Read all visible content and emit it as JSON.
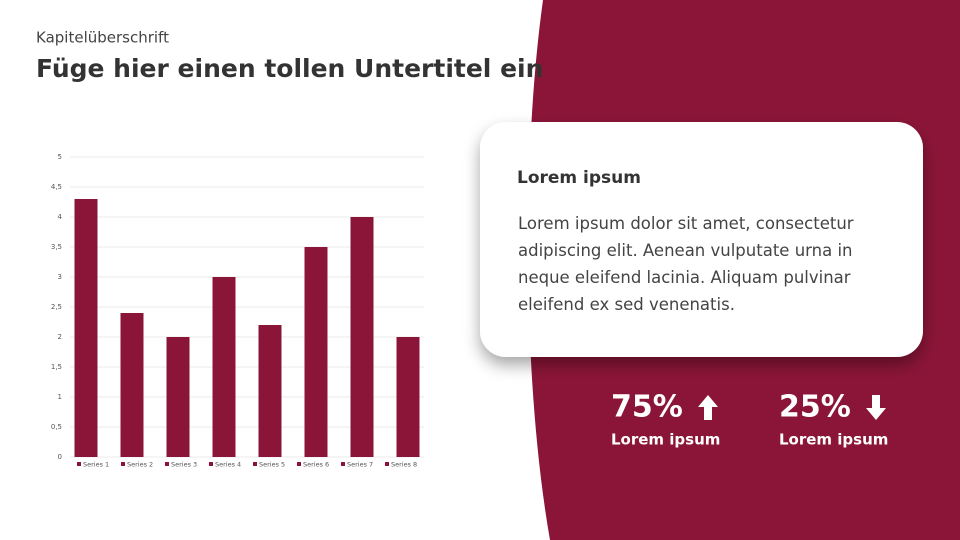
{
  "header": {
    "kicker": "Kapitelüberschrift",
    "title": "Füge hier einen tollen Untertitel ein"
  },
  "chart_data": {
    "type": "bar",
    "categories": [
      null
    ],
    "series": [
      {
        "name": "Series 1",
        "color": "#8b1538",
        "values": [
          4.3
        ]
      },
      {
        "name": "Series 2",
        "color": "#8b1538",
        "values": [
          2.4
        ]
      },
      {
        "name": "Series 3",
        "color": "#8b1538",
        "values": [
          2
        ]
      },
      {
        "name": "Series 4",
        "color": "#8b1538",
        "values": [
          3
        ]
      },
      {
        "name": "Series 5",
        "color": "#8b1538",
        "values": [
          2.2
        ]
      },
      {
        "name": "Series 6",
        "color": "#8b1538",
        "values": [
          3.5
        ]
      },
      {
        "name": "Series 7",
        "color": "#8b1538",
        "values": [
          4
        ]
      },
      {
        "name": "Series 8",
        "color": "#8b1538",
        "values": [
          2
        ]
      }
    ],
    "ylim": [
      0,
      5
    ],
    "yticks": [
      0,
      {
        "value": 0.5,
        "label": "0,5"
      },
      1,
      {
        "value": 1.5,
        "label": "1,5"
      },
      2,
      {
        "value": 2.5,
        "label": "2,5"
      },
      3,
      {
        "value": 3.5,
        "label": "3,5"
      },
      4,
      {
        "value": 4.5,
        "label": "4,5"
      },
      5
    ],
    "grid": true,
    "legend": "bottom"
  },
  "card": {
    "title": "Lorem ipsum",
    "body": "Lorem ipsum dolor sit amet, consectetur adipiscing elit. Aenean vulputate urna in neque eleifend lacinia. Aliquam pulvinar eleifend ex sed venenatis."
  },
  "stats": [
    {
      "value": "75%",
      "label": "Lorem ipsum"
    },
    {
      "value": "25%",
      "label": "Lorem ipsum"
    }
  ]
}
